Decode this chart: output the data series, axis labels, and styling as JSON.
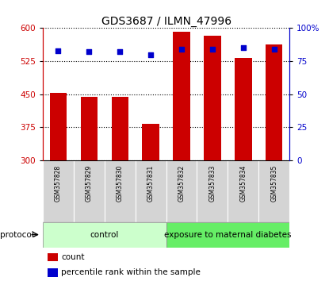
{
  "title": "GDS3687 / ILMN_47996",
  "samples": [
    "GSM357828",
    "GSM357829",
    "GSM357830",
    "GSM357831",
    "GSM357832",
    "GSM357833",
    "GSM357834",
    "GSM357835"
  ],
  "counts": [
    453,
    443,
    443,
    383,
    592,
    583,
    533,
    563
  ],
  "percentiles": [
    83,
    82,
    82,
    80,
    84,
    84,
    85,
    84
  ],
  "left_ylim": [
    300,
    600
  ],
  "left_yticks": [
    300,
    375,
    450,
    525,
    600
  ],
  "right_ylim": [
    0,
    100
  ],
  "right_yticks": [
    0,
    25,
    50,
    75,
    100
  ],
  "right_yticklabels": [
    "0",
    "25",
    "50",
    "75",
    "100%"
  ],
  "bar_color": "#cc0000",
  "dot_color": "#0000cc",
  "bar_width": 0.55,
  "groups": [
    {
      "label": "control",
      "start": 0,
      "end": 3,
      "color": "#ccffcc"
    },
    {
      "label": "exposure to maternal diabetes",
      "start": 4,
      "end": 7,
      "color": "#66ee66"
    }
  ],
  "protocol_label": "protocol",
  "legend_items": [
    {
      "color": "#cc0000",
      "label": "count"
    },
    {
      "color": "#0000cc",
      "label": "percentile rank within the sample"
    }
  ],
  "title_fontsize": 10,
  "tick_fontsize": 7.5,
  "sample_fontsize": 5.5,
  "group_label_fontsize": 7.5,
  "legend_fontsize": 7.5
}
